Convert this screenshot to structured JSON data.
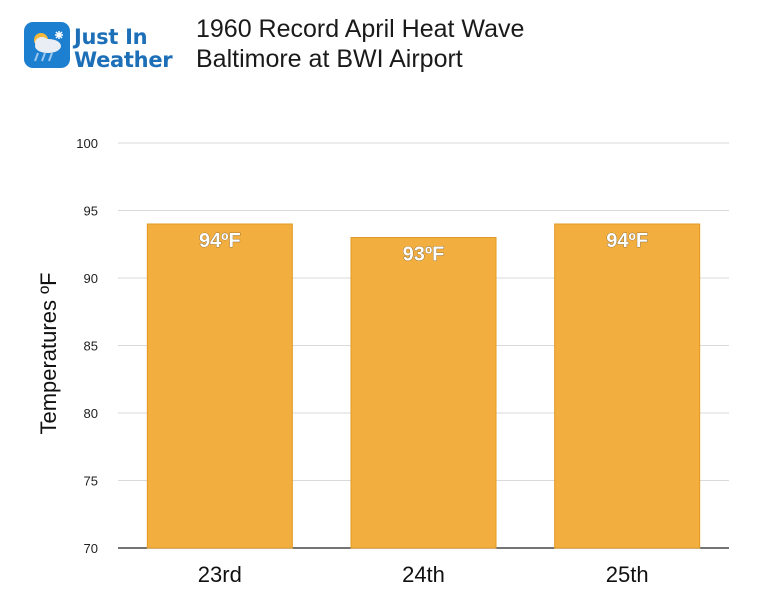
{
  "logo": {
    "line1": "Just In",
    "line2": "Weather"
  },
  "title_lines": [
    "1960 Record April Heat Wave",
    "Baltimore at BWI Airport"
  ],
  "colors": {
    "bar": "#f2ae3e",
    "bar_edge": "#e39a22",
    "grid": "#d9d9d9",
    "logo_blue": "#1d6fb8"
  },
  "chart_data": {
    "type": "bar",
    "title": "1960 Record April Heat Wave Baltimore at BWI Airport",
    "categories": [
      "23rd",
      "24th",
      "25th"
    ],
    "values": [
      94,
      93,
      94
    ],
    "data_labels": [
      "94ºF",
      "93ºF",
      "94ºF"
    ],
    "ylabel": "Temperatures ºF",
    "xlabel": "",
    "ylim": [
      70,
      100
    ],
    "yticks": [
      70,
      75,
      80,
      85,
      90,
      95,
      100
    ],
    "grid": true,
    "legend": "none"
  }
}
